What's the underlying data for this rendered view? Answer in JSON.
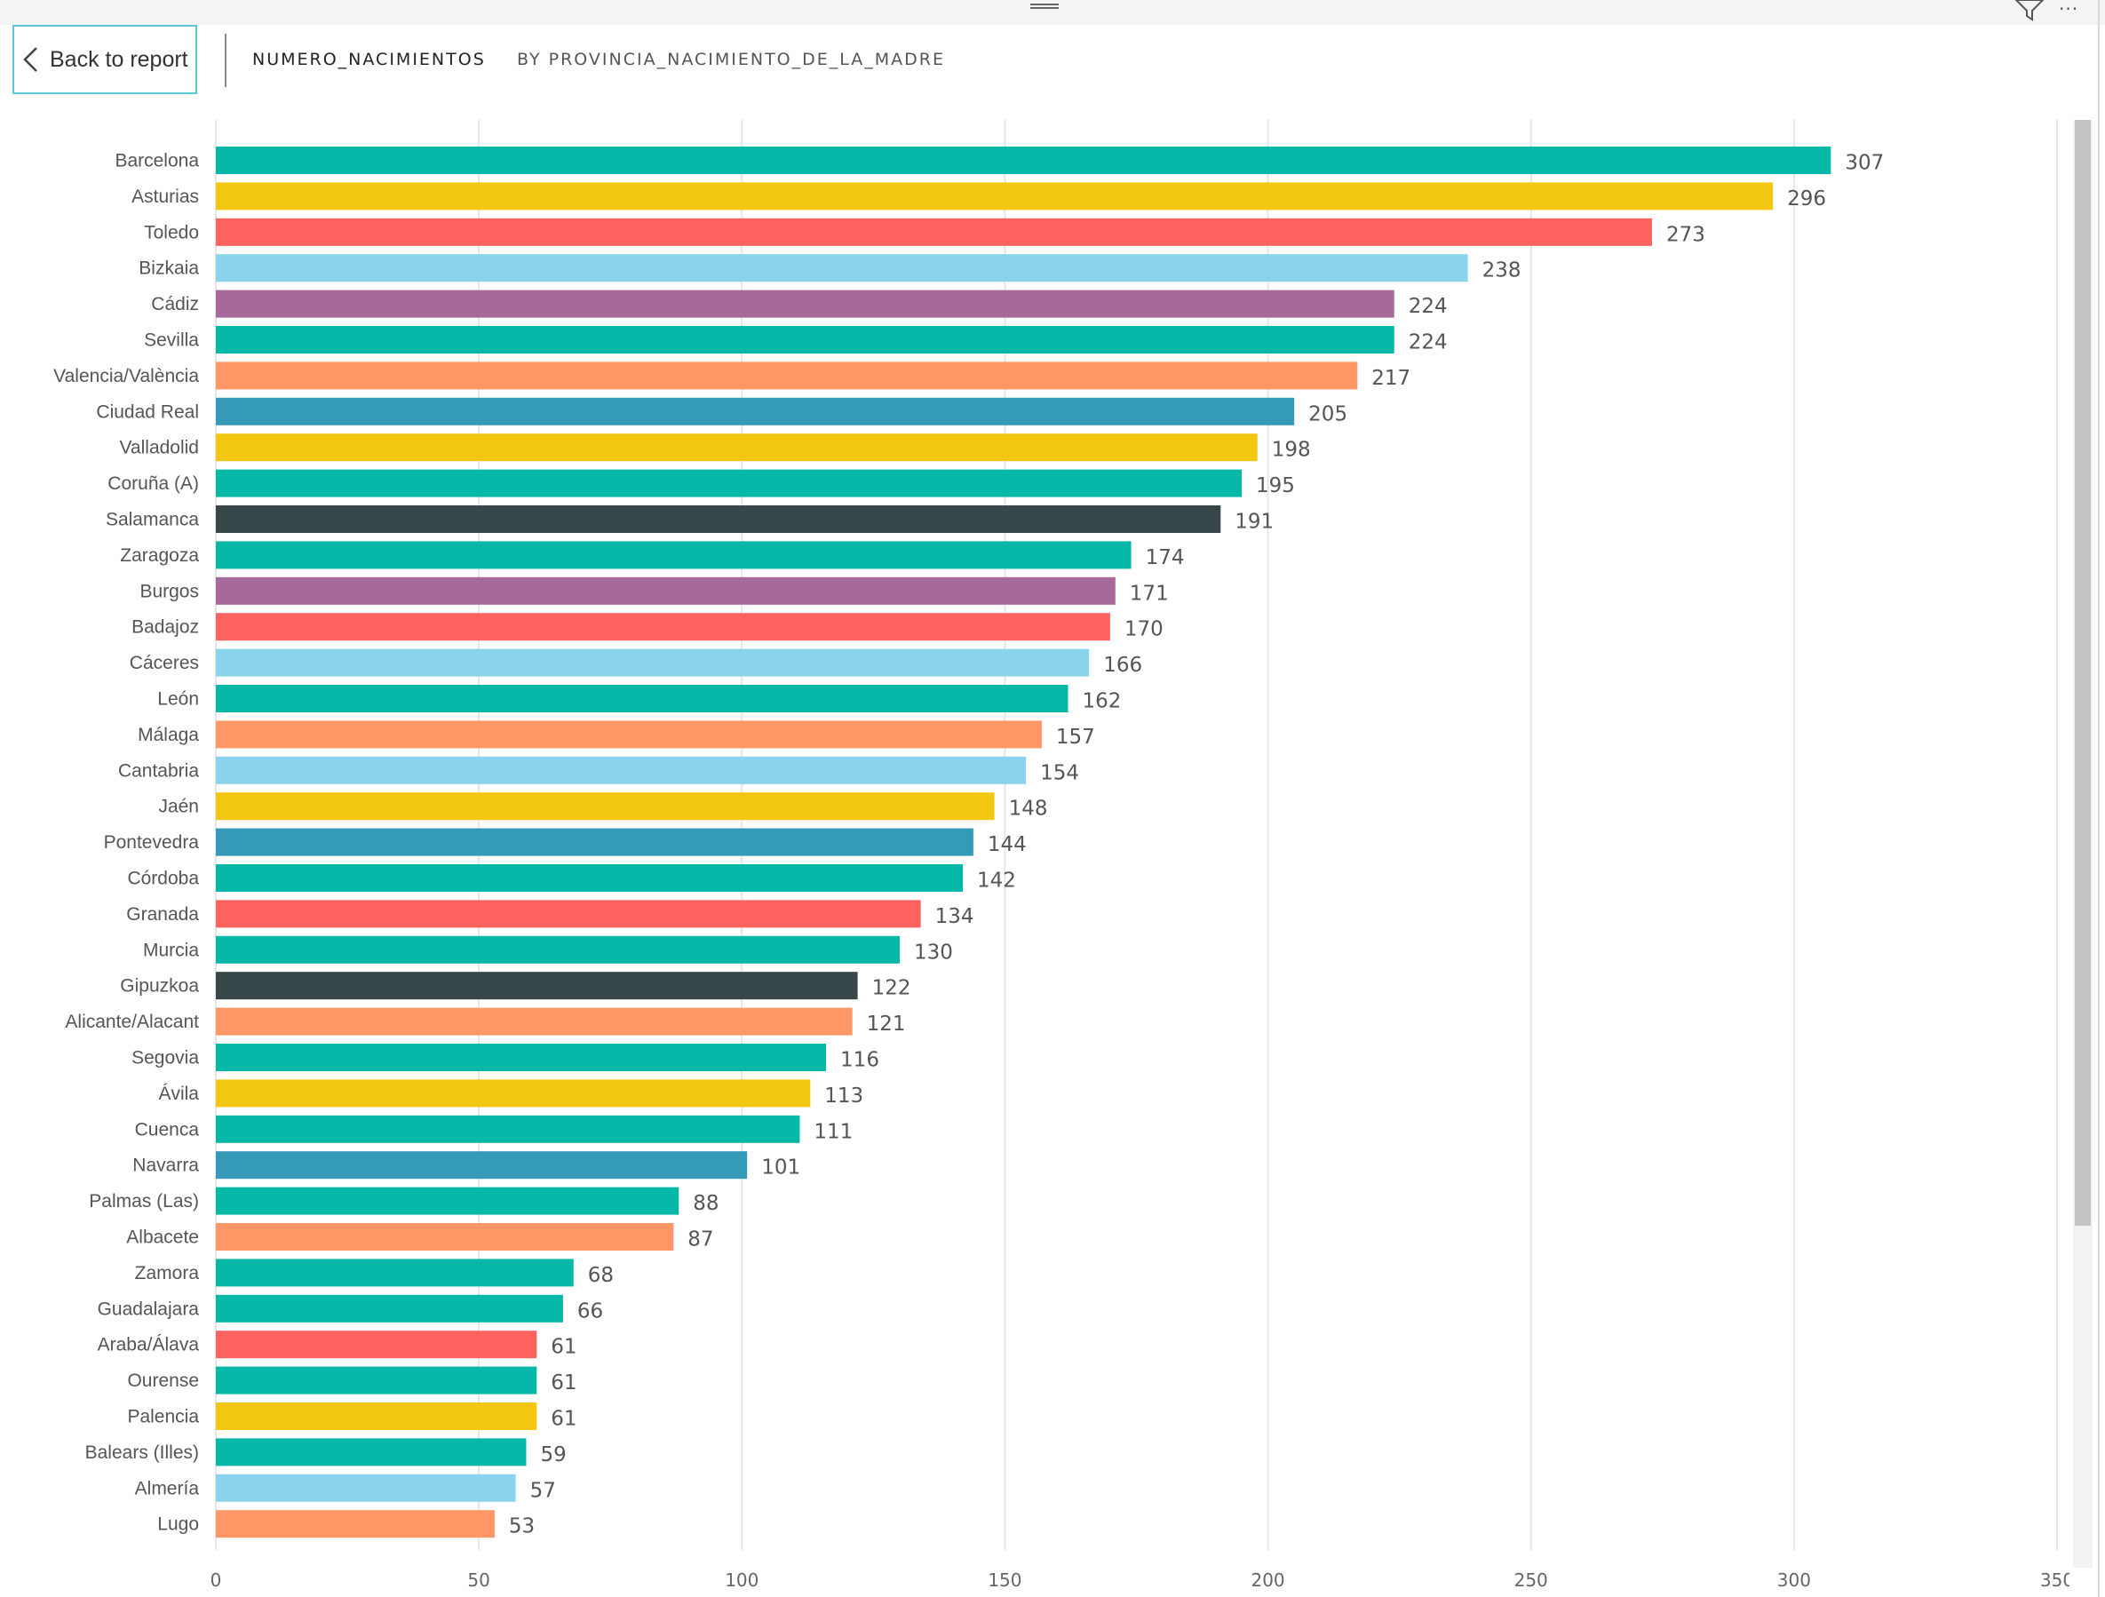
{
  "header": {
    "back_label": "Back to report",
    "title_measure": "NUMERO_NACIMIENTOS",
    "title_dimension": "BY PROVINCIA_NACIMIENTO_DE_LA_MADRE"
  },
  "chart_data": {
    "type": "bar",
    "orientation": "horizontal",
    "categories": [
      "Barcelona",
      "Asturias",
      "Toledo",
      "Bizkaia",
      "Cádiz",
      "Sevilla",
      "Valencia/València",
      "Ciudad Real",
      "Valladolid",
      "Coruña (A)",
      "Salamanca",
      "Zaragoza",
      "Burgos",
      "Badajoz",
      "Cáceres",
      "León",
      "Málaga",
      "Cantabria",
      "Jaén",
      "Pontevedra",
      "Córdoba",
      "Granada",
      "Murcia",
      "Gipuzkoa",
      "Alicante/Alacant",
      "Segovia",
      "Ávila",
      "Cuenca",
      "Navarra",
      "Palmas (Las)",
      "Albacete",
      "Zamora",
      "Guadalajara",
      "Araba/Álava",
      "Ourense",
      "Palencia",
      "Balears (Illes)",
      "Almería",
      "Lugo"
    ],
    "values": [
      307,
      296,
      273,
      238,
      224,
      224,
      217,
      205,
      198,
      195,
      191,
      174,
      171,
      170,
      166,
      162,
      157,
      154,
      148,
      144,
      142,
      134,
      130,
      122,
      121,
      116,
      113,
      111,
      101,
      88,
      87,
      68,
      66,
      61,
      61,
      61,
      59,
      57,
      53
    ],
    "colors": [
      "#06b8a8",
      "#f2c611",
      "#fd625e",
      "#8ad4eb",
      "#a66999",
      "#06b8a8",
      "#fe9666",
      "#3599b8",
      "#f2c611",
      "#06b8a8",
      "#374649",
      "#06b8a8",
      "#a66999",
      "#fd625e",
      "#8ad4eb",
      "#06b8a8",
      "#fe9666",
      "#8ad4eb",
      "#f2c611",
      "#3599b8",
      "#06b8a8",
      "#fd625e",
      "#06b8a8",
      "#374649",
      "#fe9666",
      "#06b8a8",
      "#f2c611",
      "#06b8a8",
      "#3599b8",
      "#06b8a8",
      "#fe9666",
      "#06b8a8",
      "#06b8a8",
      "#fd625e",
      "#06b8a8",
      "#f2c611",
      "#06b8a8",
      "#8ad4eb",
      "#fe9666"
    ],
    "xlim": [
      0,
      350
    ],
    "xticks": [
      0,
      50,
      100,
      150,
      200,
      250,
      300,
      350
    ],
    "grid": true,
    "data_labels": true
  }
}
